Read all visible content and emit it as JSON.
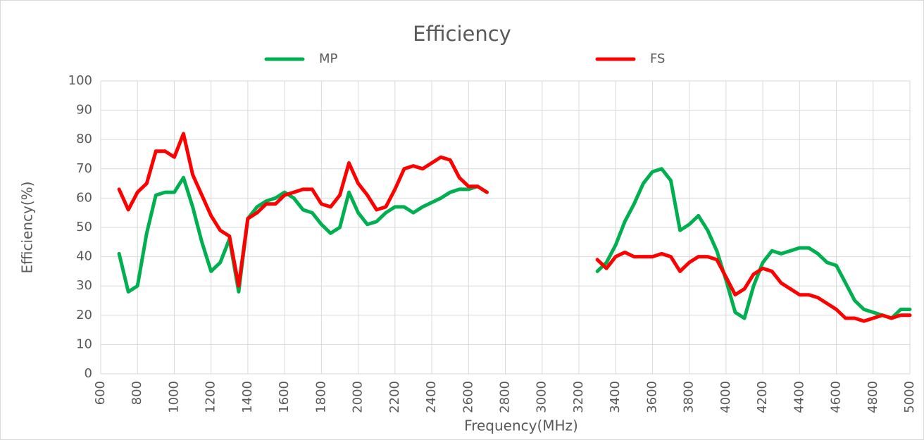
{
  "chart_data": {
    "type": "line",
    "title": "Efficiency",
    "xlabel": "Frequency(MHz)",
    "ylabel": "Efficiency(%)",
    "x": [
      700,
      750,
      800,
      850,
      900,
      950,
      1000,
      1050,
      1100,
      1150,
      1200,
      1250,
      1300,
      1350,
      1400,
      1450,
      1500,
      1550,
      1600,
      1650,
      1700,
      1750,
      1800,
      1850,
      1900,
      1950,
      2000,
      2050,
      2100,
      2150,
      2200,
      2250,
      2300,
      2350,
      2400,
      2450,
      2500,
      2550,
      2600,
      2650,
      2700,
      2750,
      2800,
      2850,
      2900,
      2950,
      3000,
      3050,
      3100,
      3150,
      3200,
      3250,
      3300,
      3350,
      3400,
      3450,
      3500,
      3550,
      3600,
      3650,
      3700,
      3750,
      3800,
      3850,
      3900,
      3950,
      4000,
      4050,
      4100,
      4150,
      4200,
      4250,
      4300,
      4350,
      4400,
      4450,
      4500,
      4550,
      4600,
      4650,
      4700,
      4750,
      4800,
      4850,
      4900,
      4950,
      5000
    ],
    "series": [
      {
        "name": "MP",
        "color": "#00b050",
        "values": [
          41,
          28,
          30,
          48,
          61,
          62,
          62,
          67,
          57,
          45,
          35,
          38,
          46,
          28,
          53,
          57,
          59,
          60,
          62,
          60,
          56,
          55,
          51,
          48,
          50,
          62,
          55,
          51,
          52,
          55,
          57,
          57,
          55,
          57,
          58.5,
          60,
          62,
          63,
          63,
          64,
          62,
          null,
          null,
          null,
          null,
          null,
          null,
          null,
          null,
          null,
          null,
          null,
          35,
          38,
          44,
          52,
          58,
          65,
          69,
          70,
          66,
          49,
          51,
          54,
          49,
          42,
          32,
          21,
          19,
          30,
          38,
          42,
          41,
          42,
          43,
          43,
          41,
          38,
          37,
          31,
          25,
          22,
          21,
          20,
          19,
          22,
          22
        ]
      },
      {
        "name": "FS",
        "color": "#ff0000",
        "values": [
          63,
          56,
          62,
          65,
          76,
          76,
          74,
          82,
          68,
          61,
          54,
          49,
          47,
          30,
          53,
          55,
          58,
          58,
          61,
          62,
          63,
          63,
          58,
          57,
          61,
          72,
          65,
          61,
          56,
          57,
          63,
          70,
          71,
          70,
          72,
          74,
          73,
          67,
          64,
          64,
          62,
          null,
          null,
          null,
          null,
          null,
          null,
          null,
          null,
          null,
          null,
          null,
          39,
          36,
          40,
          41.5,
          40,
          40,
          40,
          41,
          40,
          35,
          38,
          40,
          40,
          39,
          33,
          27,
          29,
          34,
          36,
          35,
          31,
          29,
          27,
          27,
          26,
          24,
          22,
          19,
          19,
          18,
          19,
          20,
          19,
          20,
          20
        ]
      }
    ],
    "xlim": [
      600,
      5000
    ],
    "xticks": [
      600,
      800,
      1000,
      1200,
      1400,
      1600,
      1800,
      2000,
      2200,
      2400,
      2600,
      2800,
      3000,
      3200,
      3400,
      3600,
      3800,
      4000,
      4200,
      4400,
      4600,
      4800,
      5000
    ],
    "ylim": [
      0,
      100
    ],
    "yticks": [
      0,
      10,
      20,
      30,
      40,
      50,
      60,
      70,
      80,
      90,
      100
    ],
    "grid": true,
    "legend": "top"
  }
}
